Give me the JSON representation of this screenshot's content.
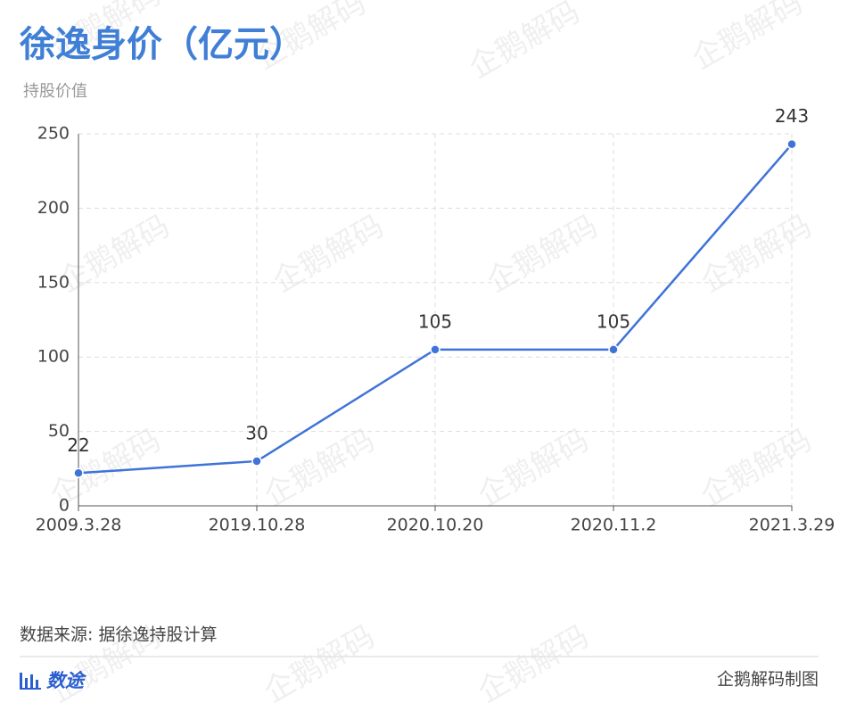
{
  "chart_data": {
    "type": "line",
    "title": "徐逸身价（亿元）",
    "y_label": "持股价值",
    "categories": [
      "2009.3.28",
      "2019.10.28",
      "2020.10.20",
      "2020.11.2",
      "2021.3.29"
    ],
    "series": [
      {
        "name": "持股价值",
        "color": "#3f73d9",
        "values": [
          22,
          30,
          105,
          105,
          243
        ]
      }
    ],
    "ylim": [
      0,
      250
    ],
    "yticks": [
      0,
      50,
      100,
      150,
      200,
      250
    ],
    "grid": true,
    "source": "数据来源: 据徐逸持股计算",
    "brand": "数途",
    "credit": "企鹅解码制图",
    "watermark": "企鹅解码"
  }
}
